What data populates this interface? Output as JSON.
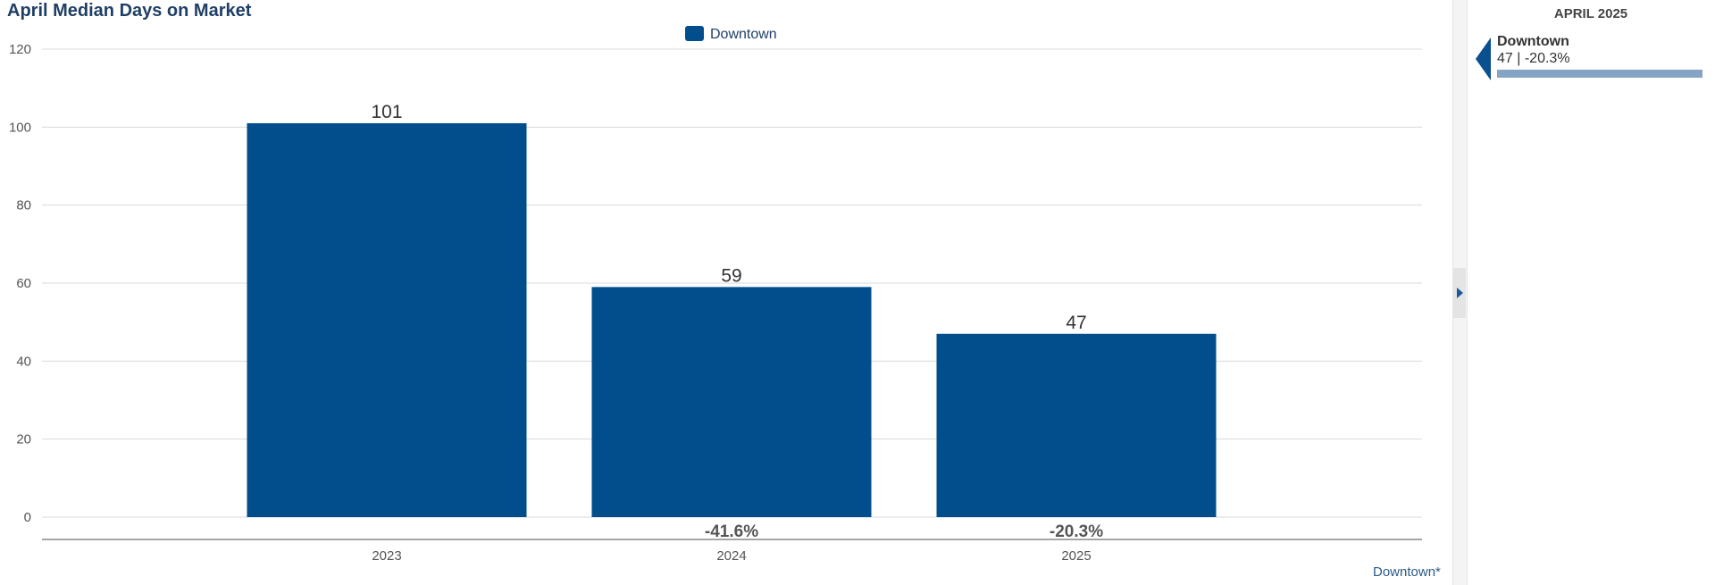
{
  "title": "April Median Days on Market",
  "footer_link": "Downtown*",
  "side_panel": {
    "heading": "APRIL 2025",
    "entry_name": "Downtown",
    "entry_value": "47 | -20.3%",
    "entry_bar_fraction": 1.0
  },
  "colors": {
    "bar": "#024e8c",
    "title": "#1f3f66",
    "grid": "#d9d9d9",
    "axis": "#888888"
  },
  "chart_data": {
    "type": "bar",
    "title": "April Median Days on Market",
    "xlabel": "",
    "ylabel": "",
    "categories": [
      "2023",
      "2024",
      "2025"
    ],
    "series": [
      {
        "name": "Downtown",
        "values": [
          101,
          59,
          47
        ]
      }
    ],
    "value_labels": [
      "101",
      "59",
      "47"
    ],
    "change_labels": [
      "",
      "-41.6%",
      "-20.3%"
    ],
    "ylim": [
      0,
      120
    ],
    "yticks": [
      0,
      20,
      40,
      60,
      80,
      100,
      120
    ],
    "grid": true,
    "legend_position": "top-center"
  }
}
